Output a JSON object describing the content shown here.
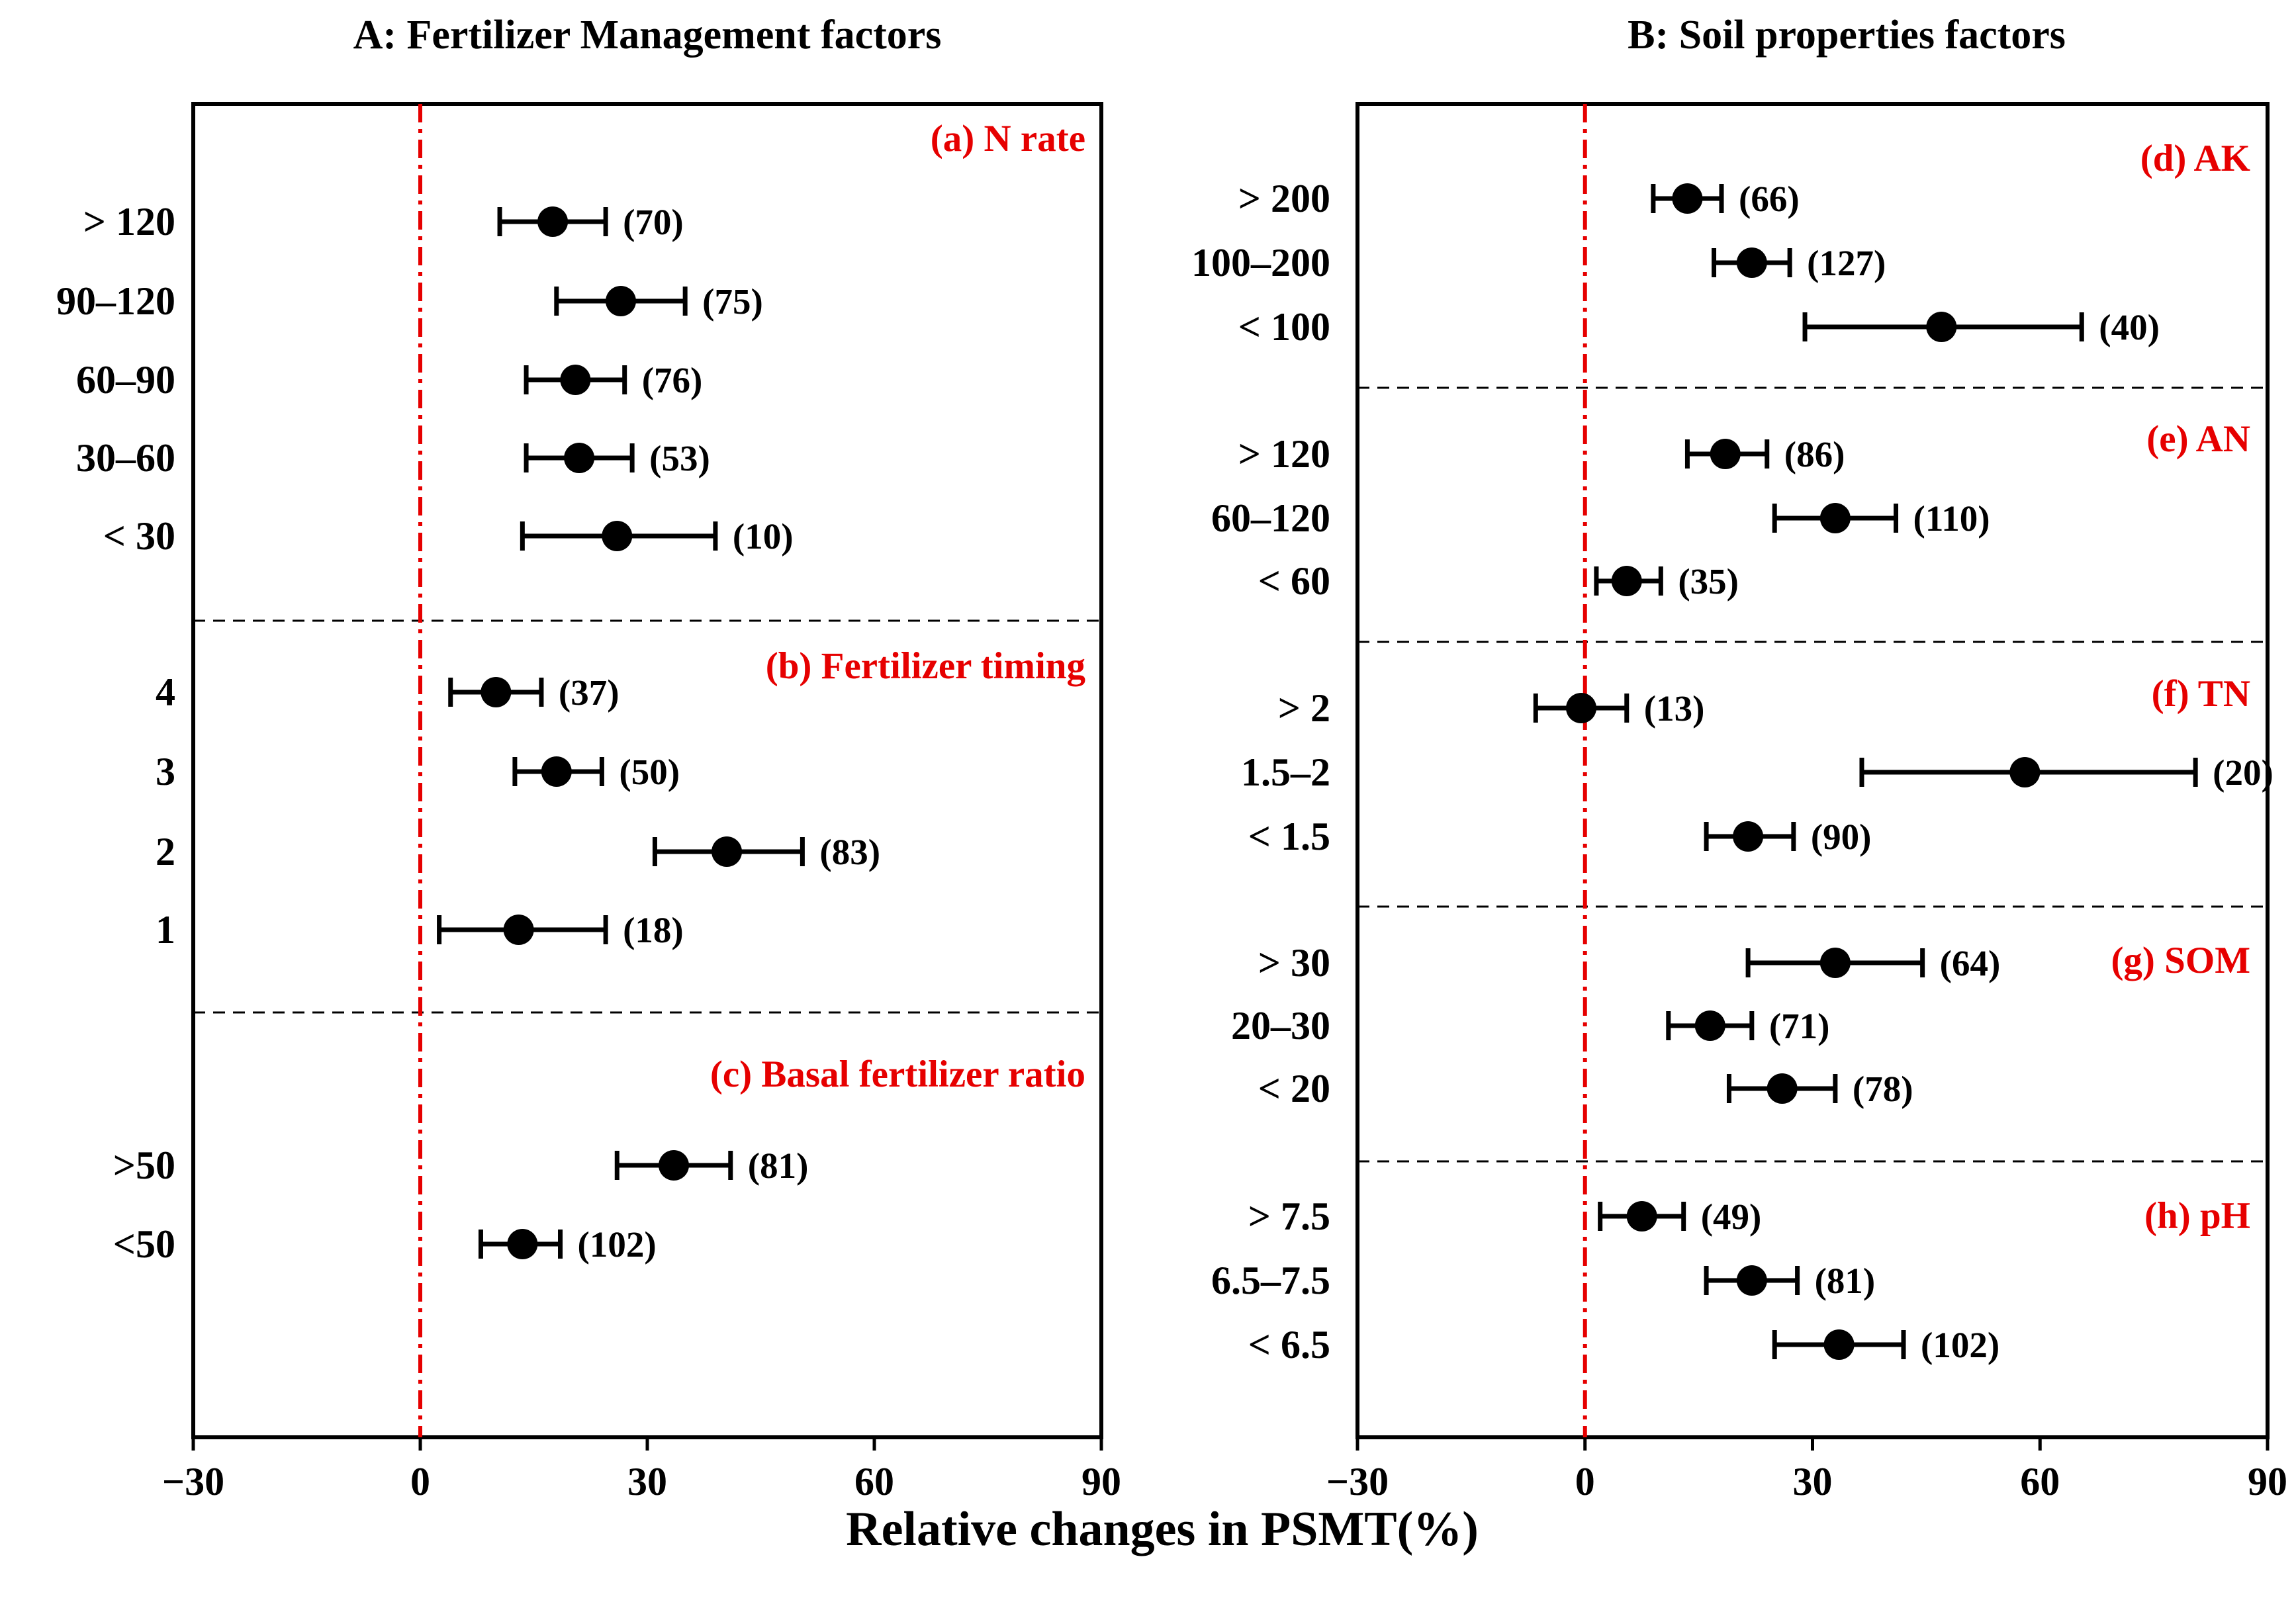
{
  "chart_data": [
    {
      "type": "forest",
      "title": "A: Fertilizer Management factors",
      "xlim": [
        -30,
        90
      ],
      "xticks": [
        "−30",
        "0",
        "30",
        "60",
        "90"
      ],
      "xtick_values": [
        -30,
        0,
        30,
        60,
        90
      ],
      "reference_line": 0,
      "reference_color": "#e60000",
      "group_color": "#e60000",
      "groups": [
        {
          "name": "(a) N  rate",
          "items": [
            {
              "label": "> 120",
              "mean": 17.5,
              "lo": 10.5,
              "hi": 24.5,
              "n": "(70)"
            },
            {
              "label": "90–120",
              "mean": 26.5,
              "lo": 18.0,
              "hi": 35.0,
              "n": "(75)"
            },
            {
              "label": "60–90",
              "mean": 20.5,
              "lo": 14.0,
              "hi": 27.0,
              "n": "(76)"
            },
            {
              "label": "30–60",
              "mean": 21.0,
              "lo": 14.0,
              "hi": 28.0,
              "n": "(53)"
            },
            {
              "label": "< 30",
              "mean": 26.0,
              "lo": 13.5,
              "hi": 39.0,
              "n": "(10)"
            }
          ]
        },
        {
          "name": "(b) Fertilizer timing",
          "items": [
            {
              "label": "4",
              "mean": 10.0,
              "lo": 4.0,
              "hi": 16.0,
              "n": "(37)"
            },
            {
              "label": "3",
              "mean": 18.0,
              "lo": 12.5,
              "hi": 24.0,
              "n": "(50)"
            },
            {
              "label": "2",
              "mean": 40.5,
              "lo": 31.0,
              "hi": 50.5,
              "n": "(83)"
            },
            {
              "label": "1",
              "mean": 13.0,
              "lo": 2.5,
              "hi": 24.5,
              "n": "(18)"
            }
          ]
        },
        {
          "name": "(c) Basal fertilizer ratio",
          "items": [
            {
              "label": ">50",
              "mean": 33.5,
              "lo": 26.0,
              "hi": 41.0,
              "n": "(81)"
            },
            {
              "label": "<50",
              "mean": 13.5,
              "lo": 8.0,
              "hi": 18.5,
              "n": "(102)"
            }
          ]
        }
      ]
    },
    {
      "type": "forest",
      "title": "B:  Soil properties factors",
      "xlim": [
        -30,
        90
      ],
      "xticks": [
        "−30",
        "0",
        "30",
        "60",
        "90"
      ],
      "xtick_values": [
        -30,
        0,
        30,
        60,
        90
      ],
      "reference_line": 0,
      "reference_color": "#e60000",
      "group_color": "#e60000",
      "groups": [
        {
          "name": "(d) AK",
          "items": [
            {
              "label": "> 200",
              "mean": 13.5,
              "lo": 9.0,
              "hi": 18.0,
              "n": "(66)"
            },
            {
              "label": "100–200",
              "mean": 22.0,
              "lo": 17.0,
              "hi": 27.0,
              "n": "(127)"
            },
            {
              "label": "< 100",
              "mean": 47.0,
              "lo": 29.0,
              "hi": 65.5,
              "n": "(40)"
            }
          ]
        },
        {
          "name": "(e) AN",
          "items": [
            {
              "label": "> 120",
              "mean": 18.5,
              "lo": 13.5,
              "hi": 24.0,
              "n": "(86)"
            },
            {
              "label": "60–120",
              "mean": 33.0,
              "lo": 25.0,
              "hi": 41.0,
              "n": "(110)"
            },
            {
              "label": "< 60",
              "mean": 5.5,
              "lo": 1.5,
              "hi": 10.0,
              "n": "(35)"
            }
          ]
        },
        {
          "name": "(f) TN",
          "items": [
            {
              "label": "> 2",
              "mean": -0.5,
              "lo": -6.5,
              "hi": 5.5,
              "n": "(13)"
            },
            {
              "label": "1.5–2",
              "mean": 58.0,
              "lo": 36.5,
              "hi": 80.5,
              "n": "(20)"
            },
            {
              "label": "< 1.5",
              "mean": 21.5,
              "lo": 16.0,
              "hi": 27.5,
              "n": "(90)"
            }
          ]
        },
        {
          "name": "(g) SOM",
          "items": [
            {
              "label": "> 30",
              "mean": 33.0,
              "lo": 21.5,
              "hi": 44.5,
              "n": "(64)"
            },
            {
              "label": "20–30",
              "mean": 16.5,
              "lo": 11.0,
              "hi": 22.0,
              "n": "(71)"
            },
            {
              "label": "< 20",
              "mean": 26.0,
              "lo": 19.0,
              "hi": 33.0,
              "n": "(78)"
            }
          ]
        },
        {
          "name": "(h) pH",
          "items": [
            {
              "label": "> 7.5",
              "mean": 7.5,
              "lo": 2.0,
              "hi": 13.0,
              "n": "(49)"
            },
            {
              "label": "6.5–7.5",
              "mean": 22.0,
              "lo": 16.0,
              "hi": 28.0,
              "n": "(81)"
            },
            {
              "label": "< 6.5",
              "mean": 33.5,
              "lo": 25.0,
              "hi": 42.0,
              "n": "(102)"
            }
          ]
        }
      ]
    }
  ],
  "xlabel": "Relative changes in PSMT(%)"
}
